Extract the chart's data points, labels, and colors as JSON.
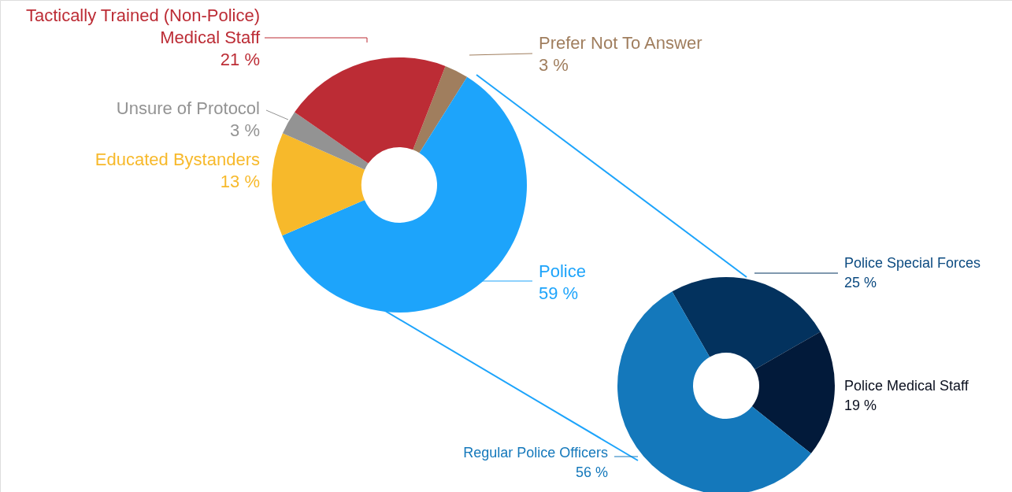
{
  "chart_data": [
    {
      "type": "donut",
      "categories": [
        "Prefer Not To Answer",
        "Police",
        "Educated Bystanders",
        "Unsure of Protocol",
        "Tactically Trained (Non-Police)\nMedical Staff"
      ],
      "values": [
        3,
        59,
        13,
        3,
        21
      ],
      "value_labels": [
        "3 %",
        "59 %",
        "13 %",
        "3 %",
        "21 %"
      ],
      "colors": [
        "#a07e5e",
        "#1da4fb",
        "#f7b92b",
        "#939393",
        "#bc2c35"
      ]
    },
    {
      "type": "donut",
      "categories": [
        "Police Special Forces",
        "Police Medical Staff",
        "Regular Police Officers"
      ],
      "values": [
        25,
        19,
        56
      ],
      "value_labels": [
        "25 %",
        "19 %",
        "56 %"
      ],
      "colors": [
        "#03325e",
        "#021a3a",
        "#1478bb"
      ]
    }
  ]
}
